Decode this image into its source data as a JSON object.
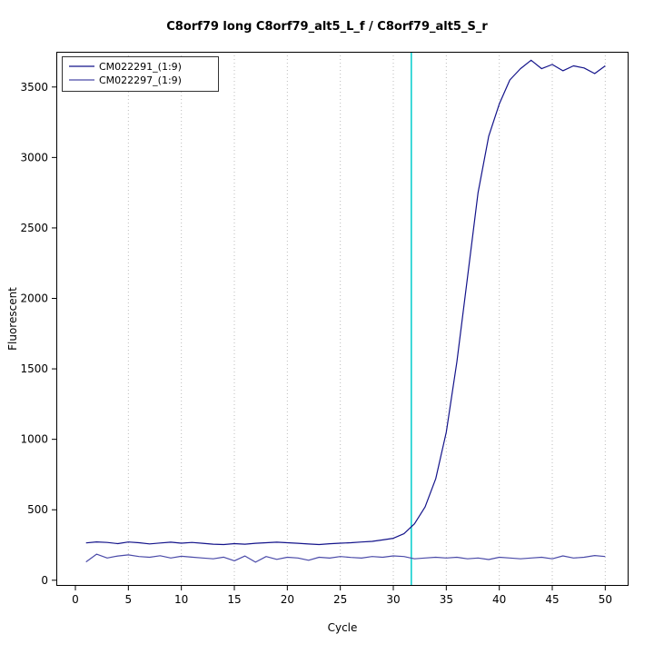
{
  "chart_data": {
    "type": "line",
    "title": "C8orf79 long C8orf79_alt5_L_f / C8orf79_alt5_S_r",
    "xlabel": "Cycle",
    "ylabel": "Fluorescent",
    "xlim": [
      -1.8,
      52.2
    ],
    "ylim": [
      -40,
      3750
    ],
    "xticks": [
      0,
      5,
      10,
      15,
      20,
      25,
      30,
      35,
      40,
      45,
      50
    ],
    "yticks": [
      0,
      500,
      1000,
      1500,
      2000,
      2500,
      3000,
      3500
    ],
    "grid": {
      "vertical_at": [
        5,
        10,
        15,
        20,
        25,
        30,
        35,
        40,
        45,
        50
      ],
      "color": "#bbbbbb",
      "style": "dotted"
    },
    "threshold_line": {
      "x": 31.7,
      "color": "#00CCCC"
    },
    "legend_position": "top-left",
    "series": [
      {
        "name": "CM022291_(1:9)",
        "color": "#13138a",
        "x_start": 1,
        "values": [
          265,
          272,
          268,
          260,
          271,
          266,
          258,
          264,
          270,
          263,
          268,
          262,
          256,
          253,
          260,
          256,
          262,
          266,
          270,
          266,
          262,
          257,
          253,
          259,
          263,
          266,
          271,
          276,
          286,
          298,
          330,
          400,
          520,
          720,
          1050,
          1550,
          2150,
          2750,
          3150,
          3380,
          3550,
          3630,
          3690,
          3630,
          3660,
          3615,
          3650,
          3635,
          3595,
          3650
        ]
      },
      {
        "name": "CM022297_(1:9)",
        "color": "#4a4aa8",
        "x_start": 1,
        "values": [
          130,
          185,
          158,
          172,
          180,
          168,
          163,
          174,
          158,
          170,
          164,
          158,
          152,
          164,
          138,
          172,
          128,
          168,
          148,
          163,
          158,
          142,
          163,
          157,
          168,
          162,
          157,
          168,
          163,
          173,
          168,
          152,
          158,
          163,
          158,
          163,
          152,
          158,
          147,
          163,
          158,
          152,
          158,
          163,
          152,
          173,
          158,
          163,
          175,
          168
        ]
      }
    ]
  }
}
